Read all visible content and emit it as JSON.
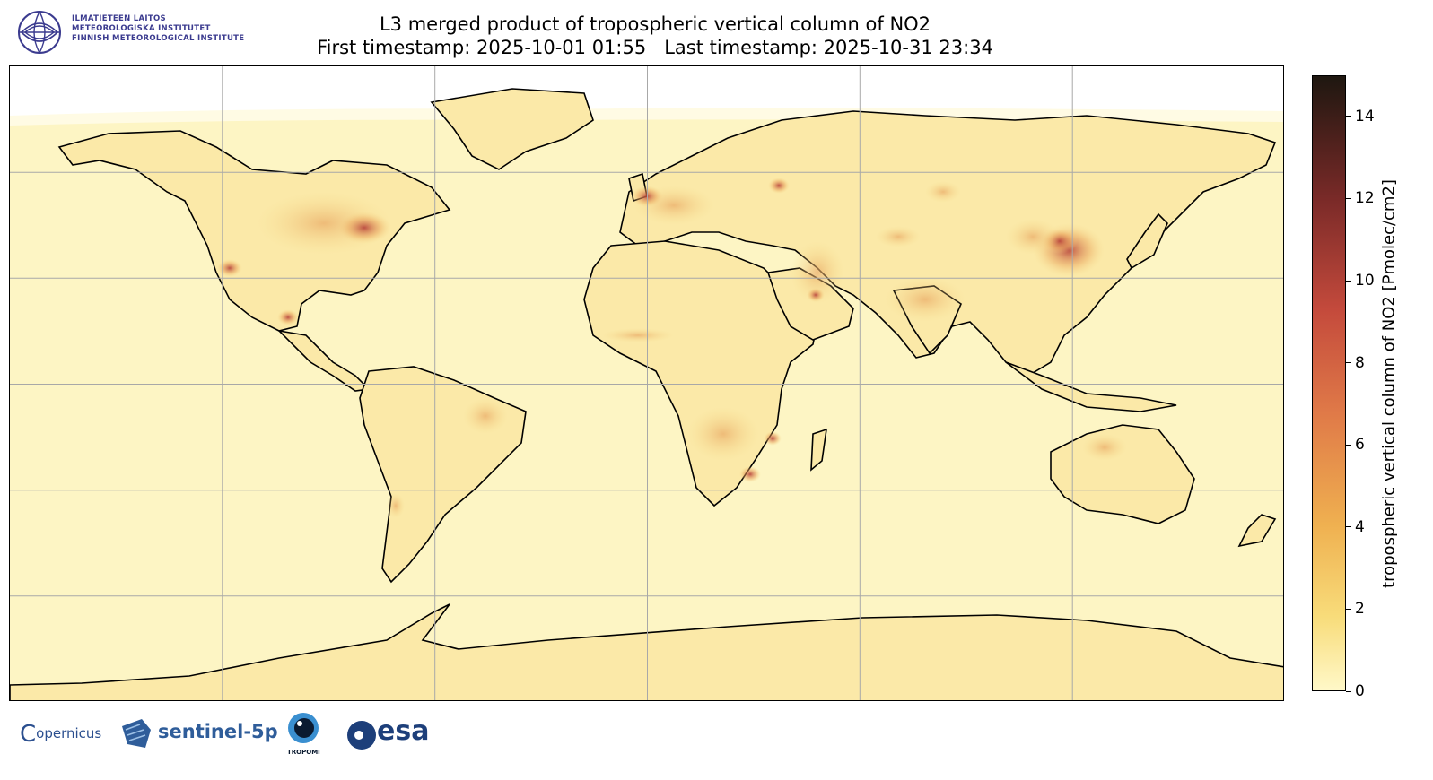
{
  "header": {
    "institute_lines": [
      "ILMATIETEEN LAITOS",
      "METEOROLOGISKA INSTITUTET",
      "FINNISH METEOROLOGICAL INSTITUTE"
    ],
    "title_line1": "L3 merged product of tropospheric vertical column of NO2",
    "title_line2": "First timestamp: 2025-10-01 01:55   Last timestamp: 2025-10-31 23:34"
  },
  "colorbar": {
    "label": "tropospheric vertical column of NO2 [Pmolec/cm2]",
    "ticks": [
      "0",
      "2",
      "4",
      "6",
      "8",
      "10",
      "12",
      "14"
    ],
    "range": [
      0,
      15
    ],
    "colors": [
      "#fff8c8",
      "#f8dc7a",
      "#efb050",
      "#e07a48",
      "#c44a3c",
      "#7a2a28",
      "#1e1710"
    ]
  },
  "map": {
    "projection": "equirectangular",
    "gridlines": true,
    "background_color": "#fdf5c4",
    "coastline_color": "#000000"
  },
  "footer": {
    "logos": [
      "opernicus",
      "sentinel-5p",
      "TROPOMI",
      "esa"
    ]
  }
}
